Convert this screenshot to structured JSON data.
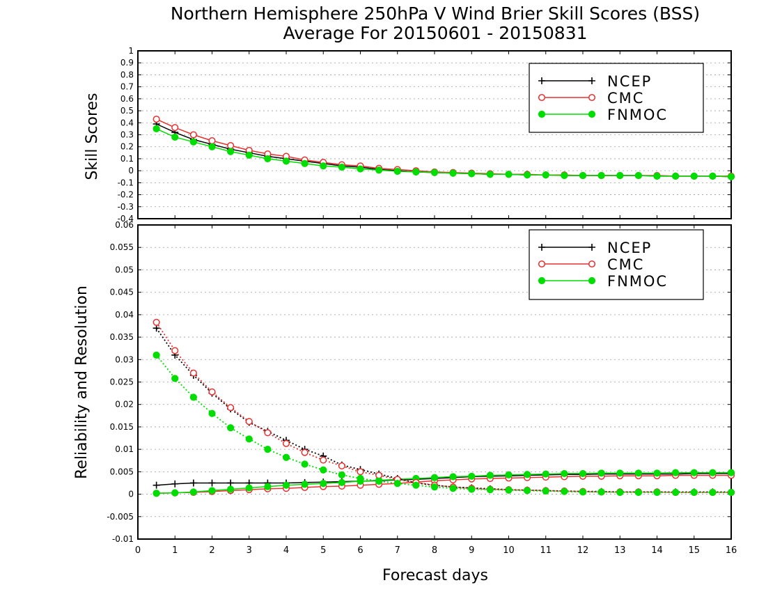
{
  "title": "Northern Hemisphere 250hPa V Wind Brier Skill Scores (BSS)",
  "subtitle": "Average For 20150601 - 20150831",
  "xlabel": "Forecast days",
  "colors": {
    "NCEP": "#000000",
    "CMC": "#e83030",
    "FNMOC": "#00dd00"
  },
  "legend_labels": [
    "NCEP",
    "CMC",
    "FNMOC"
  ],
  "chart_data": [
    {
      "type": "line",
      "panel": "top",
      "ylabel": "Skill Scores",
      "xlim": [
        0,
        16
      ],
      "ylim": [
        -0.4,
        1
      ],
      "xticks": [
        0,
        1,
        2,
        3,
        4,
        5,
        6,
        7,
        8,
        9,
        10,
        11,
        12,
        13,
        14,
        15,
        16
      ],
      "yticks": [
        -0.4,
        -0.3,
        -0.2,
        -0.1,
        0,
        0.1,
        0.2,
        0.3,
        0.4,
        0.5,
        0.6,
        0.7,
        0.8,
        0.9,
        1
      ],
      "ytick_labels": [
        "-0.4",
        "-0.3",
        "-0.2",
        "-0.1",
        "0",
        "0.1",
        "0.2",
        "0.3",
        "0.4",
        "0.5",
        "0.6",
        "0.7",
        "0.8",
        "0.9",
        "1"
      ],
      "grid": "horizontal dotted",
      "legend_position": "top-right",
      "x": [
        0.5,
        1,
        1.5,
        2,
        2.5,
        3,
        3.5,
        4,
        4.5,
        5,
        5.5,
        6,
        6.5,
        7,
        7.5,
        8,
        8.5,
        9,
        9.5,
        10,
        10.5,
        11,
        11.5,
        12,
        12.5,
        13,
        13.5,
        14,
        14.5,
        15,
        15.5,
        16
      ],
      "series": [
        {
          "name": "NCEP",
          "style": "solid",
          "marker": "plus",
          "values": [
            0.39,
            0.32,
            0.26,
            0.22,
            0.18,
            0.15,
            0.12,
            0.1,
            0.08,
            0.06,
            0.04,
            0.03,
            0.01,
            0.0,
            -0.01,
            -0.015,
            -0.02,
            -0.025,
            -0.03,
            -0.03,
            -0.035,
            -0.035,
            -0.04,
            -0.04,
            -0.04,
            -0.04,
            -0.04,
            -0.045,
            -0.045,
            -0.045,
            -0.045,
            -0.05
          ]
        },
        {
          "name": "CMC",
          "style": "solid",
          "marker": "open-circle",
          "values": [
            0.43,
            0.36,
            0.3,
            0.25,
            0.21,
            0.17,
            0.14,
            0.12,
            0.09,
            0.07,
            0.05,
            0.04,
            0.02,
            0.01,
            0.0,
            -0.01,
            -0.015,
            -0.02,
            -0.025,
            -0.03,
            -0.03,
            -0.035,
            -0.035,
            -0.04,
            -0.04,
            -0.04,
            -0.04,
            -0.04,
            -0.045,
            -0.045,
            -0.045,
            -0.045
          ]
        },
        {
          "name": "FNMOC",
          "style": "solid",
          "marker": "filled-circle",
          "values": [
            0.35,
            0.28,
            0.24,
            0.2,
            0.16,
            0.13,
            0.1,
            0.08,
            0.06,
            0.04,
            0.03,
            0.015,
            0.005,
            -0.005,
            -0.01,
            -0.015,
            -0.02,
            -0.025,
            -0.03,
            -0.03,
            -0.035,
            -0.035,
            -0.04,
            -0.04,
            -0.04,
            -0.04,
            -0.04,
            -0.045,
            -0.045,
            -0.045,
            -0.045,
            -0.05
          ]
        }
      ]
    },
    {
      "type": "line",
      "panel": "bottom",
      "ylabel": "Reliability and Resolution",
      "xlim": [
        0,
        16
      ],
      "ylim": [
        -0.01,
        0.06
      ],
      "xticks": [
        0,
        1,
        2,
        3,
        4,
        5,
        6,
        7,
        8,
        9,
        10,
        11,
        12,
        13,
        14,
        15,
        16
      ],
      "yticks": [
        -0.01,
        -0.005,
        0,
        0.005,
        0.01,
        0.015,
        0.02,
        0.025,
        0.03,
        0.035,
        0.04,
        0.045,
        0.05,
        0.055,
        0.06
      ],
      "ytick_labels": [
        "-0.01",
        "-0.005",
        "0",
        "0.005",
        "0.01",
        "0.015",
        "0.02",
        "0.025",
        "0.03",
        "0.035",
        "0.04",
        "0.045",
        "0.05",
        "0.055",
        "0.06"
      ],
      "grid": "horizontal dotted",
      "legend_position": "top-right",
      "x": [
        0.5,
        1,
        1.5,
        2,
        2.5,
        3,
        3.5,
        4,
        4.5,
        5,
        5.5,
        6,
        6.5,
        7,
        7.5,
        8,
        8.5,
        9,
        9.5,
        10,
        10.5,
        11,
        11.5,
        12,
        12.5,
        13,
        13.5,
        14,
        14.5,
        15,
        15.5,
        16
      ],
      "series": [
        {
          "name": "NCEP",
          "group": "reliability",
          "style": "solid",
          "marker": "plus",
          "values": [
            0.002,
            0.0023,
            0.0025,
            0.0025,
            0.0025,
            0.0025,
            0.0025,
            0.0025,
            0.0026,
            0.0027,
            0.0028,
            0.0029,
            0.003,
            0.0032,
            0.0033,
            0.0035,
            0.0037,
            0.0039,
            0.004,
            0.0041,
            0.0042,
            0.0043,
            0.0044,
            0.0044,
            0.0045,
            0.0045,
            0.0045,
            0.0045,
            0.0045,
            0.0046,
            0.0046,
            0.0046
          ]
        },
        {
          "name": "CMC",
          "group": "reliability",
          "style": "solid",
          "marker": "open-circle",
          "values": [
            0.0002,
            0.0003,
            0.0004,
            0.0006,
            0.0008,
            0.001,
            0.0012,
            0.0013,
            0.0015,
            0.0017,
            0.0018,
            0.002,
            0.0022,
            0.0024,
            0.0027,
            0.003,
            0.0032,
            0.0034,
            0.0035,
            0.0036,
            0.0037,
            0.0038,
            0.0039,
            0.004,
            0.004,
            0.0041,
            0.0041,
            0.0041,
            0.0042,
            0.0042,
            0.0042,
            0.0042
          ]
        },
        {
          "name": "FNMOC",
          "group": "reliability",
          "style": "solid",
          "marker": "filled-circle",
          "values": [
            0.0002,
            0.0003,
            0.0005,
            0.0008,
            0.0011,
            0.0014,
            0.0017,
            0.002,
            0.0022,
            0.0024,
            0.0026,
            0.0029,
            0.0031,
            0.0033,
            0.0035,
            0.0037,
            0.0039,
            0.004,
            0.0042,
            0.0043,
            0.0044,
            0.0045,
            0.0046,
            0.0046,
            0.0047,
            0.0047,
            0.0047,
            0.0047,
            0.0048,
            0.0048,
            0.0048,
            0.0048
          ]
        },
        {
          "name": "NCEP",
          "group": "resolution",
          "style": "dotted",
          "marker": "plus",
          "values": [
            0.037,
            0.031,
            0.0265,
            0.0225,
            0.019,
            0.016,
            0.014,
            0.012,
            0.01,
            0.0085,
            0.0065,
            0.0055,
            0.0045,
            0.0035,
            0.0025,
            0.002,
            0.0016,
            0.0014,
            0.0012,
            0.001,
            0.0009,
            0.0008,
            0.0007,
            0.0006,
            0.0006,
            0.0005,
            0.0005,
            0.0005,
            0.0005,
            0.0005,
            0.0005,
            0.0005
          ]
        },
        {
          "name": "CMC",
          "group": "resolution",
          "style": "dotted",
          "marker": "open-circle",
          "values": [
            0.0383,
            0.032,
            0.027,
            0.0228,
            0.0193,
            0.0162,
            0.0137,
            0.0113,
            0.0093,
            0.0076,
            0.0063,
            0.005,
            0.0042,
            0.0033,
            0.0026,
            0.002,
            0.0016,
            0.0013,
            0.0011,
            0.001,
            0.0009,
            0.0008,
            0.0007,
            0.0006,
            0.0005,
            0.0005,
            0.0005,
            0.0005,
            0.0004,
            0.0004,
            0.0004,
            0.0004
          ]
        },
        {
          "name": "FNMOC",
          "group": "resolution",
          "style": "dotted",
          "marker": "filled-circle",
          "values": [
            0.031,
            0.0258,
            0.0216,
            0.018,
            0.0148,
            0.0123,
            0.01,
            0.0082,
            0.0067,
            0.0054,
            0.0043,
            0.0035,
            0.0029,
            0.0024,
            0.002,
            0.0016,
            0.0013,
            0.0011,
            0.001,
            0.0009,
            0.0008,
            0.0007,
            0.0006,
            0.0005,
            0.0005,
            0.0004,
            0.0004,
            0.0004,
            0.0004,
            0.0004,
            0.0004,
            0.0004
          ]
        }
      ]
    }
  ]
}
